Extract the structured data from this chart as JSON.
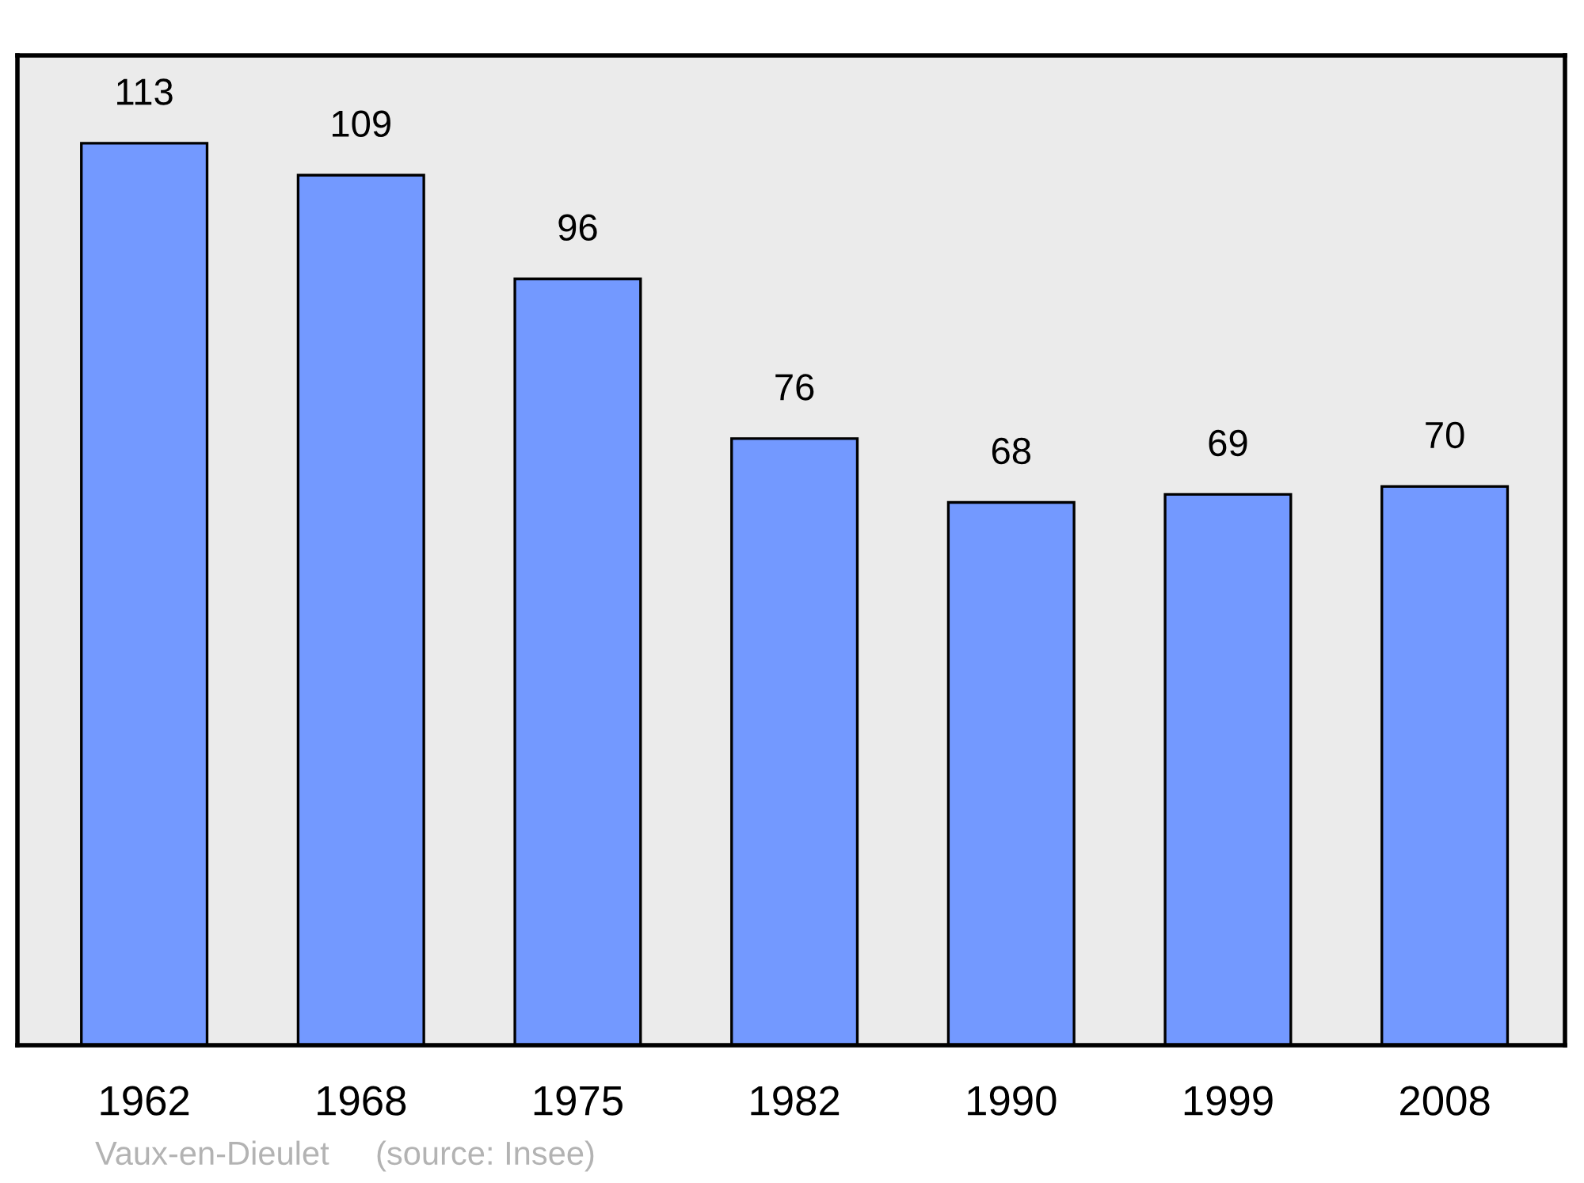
{
  "chart_data": {
    "type": "bar",
    "categories": [
      "1962",
      "1968",
      "1975",
      "1982",
      "1990",
      "1999",
      "2008"
    ],
    "values": [
      113,
      109,
      96,
      76,
      68,
      69,
      70
    ],
    "color": "#7399ff",
    "ylim": [
      0,
      124
    ],
    "data_labels": true,
    "tick_labels": "x",
    "grid": false,
    "legend": false,
    "annotations": [
      "Vaux-en-Dieulet",
      "(source: Insee)"
    ]
  }
}
